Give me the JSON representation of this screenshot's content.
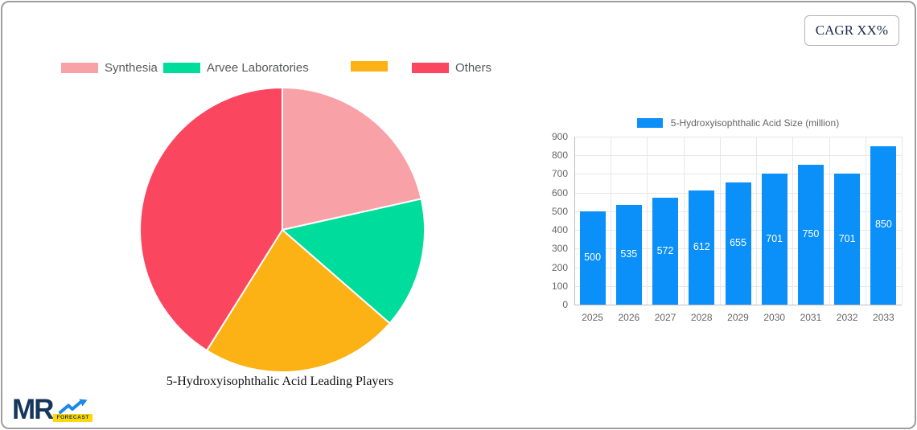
{
  "card": {
    "cagr_label": "CAGR XX%"
  },
  "pie": {
    "title": "5-Hydroxyisophthalic Acid Leading Players"
  },
  "bar": {
    "legend_label": "5-Hydroxyisophthalic Acid Size (million)"
  },
  "logo": {
    "mr": "MR",
    "forecast": "FORECAST"
  },
  "colors": {
    "bar_blue": "#0b8ff9",
    "pie_pink": "#f8a1a7",
    "pie_green": "#00dc9b",
    "pie_orange": "#fcb115",
    "pie_red": "#fb465f",
    "card_border": "#9e9e9e",
    "axis_text": "#666666",
    "legend_text": "#58595b"
  },
  "chart_data": [
    {
      "type": "pie",
      "title": "5-Hydroxyisophthalic Acid Leading Players",
      "labels": [
        "Synthesia",
        "Arvee Laboratories",
        "",
        "Others"
      ],
      "values": [
        21.5,
        14.9,
        22.5,
        41.1
      ],
      "value_unit": "share percent (estimated from arc angles)",
      "colors": [
        "#f8a1a7",
        "#00dc9b",
        "#fcb115",
        "#fb465f"
      ],
      "legend_position": "top",
      "start_angle_deg": 0,
      "direction": "clockwise"
    },
    {
      "type": "bar",
      "legend": [
        "5-Hydroxyisophthalic Acid Size (million)"
      ],
      "categories": [
        "2025",
        "2026",
        "2027",
        "2028",
        "2029",
        "2030",
        "2031",
        "2032",
        "2033"
      ],
      "values": [
        500,
        535,
        572,
        612,
        655,
        701,
        750,
        701,
        850
      ],
      "bar_color": "#0b8ff9",
      "ylim": [
        0,
        900
      ],
      "ytick_step": 100,
      "grid": true,
      "value_labels": "inside center, white"
    }
  ]
}
